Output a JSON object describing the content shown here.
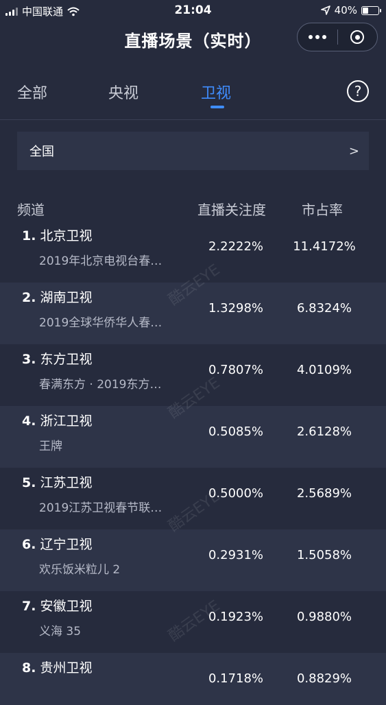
{
  "status_bar": {
    "carrier": "中国联通",
    "time": "21:04",
    "battery_percent": "40%",
    "battery_level": 0.4
  },
  "nav": {
    "title": "直播场景（实时）"
  },
  "tabs": [
    {
      "label": "全部",
      "active": false
    },
    {
      "label": "央视",
      "active": false
    },
    {
      "label": "卫视",
      "active": true
    }
  ],
  "help_label": "?",
  "region": {
    "label": "全国",
    "chevron": ">"
  },
  "table": {
    "headers": {
      "channel": "频道",
      "attention": "直播关注度",
      "share": "市占率"
    },
    "rows": [
      {
        "rank": "1.",
        "channel": "北京卫视",
        "program": "2019年北京电视台春…",
        "attention": "2.2222%",
        "share": "11.4172%"
      },
      {
        "rank": "2.",
        "channel": "湖南卫视",
        "program": "2019全球华侨华人春…",
        "attention": "1.3298%",
        "share": "6.8324%"
      },
      {
        "rank": "3.",
        "channel": "东方卫视",
        "program": "春满东方 · 2019东方…",
        "attention": "0.7807%",
        "share": "4.0109%"
      },
      {
        "rank": "4.",
        "channel": "浙江卫视",
        "program": "王牌",
        "attention": "0.5085%",
        "share": "2.6128%"
      },
      {
        "rank": "5.",
        "channel": "江苏卫视",
        "program": "2019江苏卫视春节联…",
        "attention": "0.5000%",
        "share": "2.5689%"
      },
      {
        "rank": "6.",
        "channel": "辽宁卫视",
        "program": "欢乐饭米粒儿 2",
        "attention": "0.2931%",
        "share": "1.5058%"
      },
      {
        "rank": "7.",
        "channel": "安徽卫视",
        "program": "义海 35",
        "attention": "0.1923%",
        "share": "0.9880%"
      },
      {
        "rank": "8.",
        "channel": "贵州卫视",
        "program": "",
        "attention": "0.1718%",
        "share": "0.8829%"
      }
    ]
  },
  "watermark": "酷云EYE",
  "colors": {
    "background": "#262b3d",
    "row_alt": "#2e3448",
    "accent": "#3f8dff"
  }
}
